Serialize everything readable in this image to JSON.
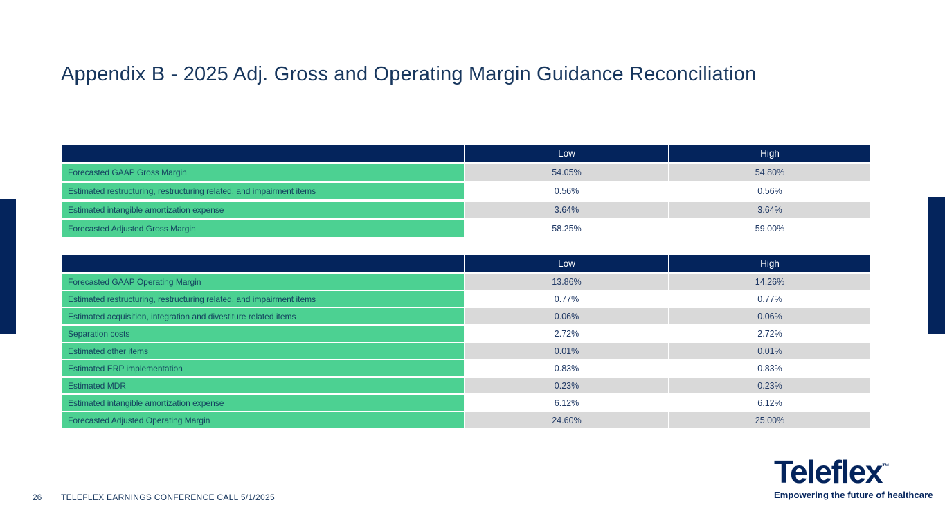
{
  "slide": {
    "title": "Appendix B - 2025 Adj. Gross and Operating Margin Guidance Reconciliation",
    "footer": {
      "page_number": "26",
      "text": "TELEFLEX EARNINGS CONFERENCE CALL 5/1/2025"
    },
    "logo": {
      "brand": "Teleflex",
      "trademark": "™",
      "tagline": "Empowering the future of healthcare"
    }
  },
  "colors": {
    "navy_header": "#04245c",
    "green_label": "#4cd192",
    "gray_value_row": "#d9d9d9",
    "title_text": "#17365d"
  },
  "tables": [
    {
      "name": "gross-margin-reconciliation",
      "columns": {
        "low": "Low",
        "high": "High"
      },
      "rows": [
        {
          "label": "Forecasted GAAP Gross Margin",
          "low": "54.05%",
          "high": "54.80%"
        },
        {
          "label": "Estimated restructuring, restructuring related, and impairment items",
          "low": "0.56%",
          "high": "0.56%"
        },
        {
          "label": "Estimated intangible amortization expense",
          "low": "3.64%",
          "high": "3.64%"
        },
        {
          "label": "Forecasted Adjusted Gross Margin",
          "low": "58.25%",
          "high": "59.00%"
        }
      ]
    },
    {
      "name": "operating-margin-reconciliation",
      "columns": {
        "low": "Low",
        "high": "High"
      },
      "rows": [
        {
          "label": "Forecasted GAAP Operating Margin",
          "low": "13.86%",
          "high": "14.26%"
        },
        {
          "label": "Estimated restructuring, restructuring related, and impairment items",
          "low": "0.77%",
          "high": "0.77%"
        },
        {
          "label": "Estimated acquisition, integration and divestiture related items",
          "low": "0.06%",
          "high": "0.06%"
        },
        {
          "label": "Separation costs",
          "low": "2.72%",
          "high": "2.72%"
        },
        {
          "label": "Estimated other items",
          "low": "0.01%",
          "high": "0.01%"
        },
        {
          "label": "Estimated ERP implementation",
          "low": "0.83%",
          "high": "0.83%"
        },
        {
          "label": "Estimated MDR",
          "low": "0.23%",
          "high": "0.23%"
        },
        {
          "label": "Estimated intangible amortization expense",
          "low": "6.12%",
          "high": "6.12%"
        },
        {
          "label": "Forecasted Adjusted Operating Margin",
          "low": "24.60%",
          "high": "25.00%"
        }
      ]
    }
  ]
}
